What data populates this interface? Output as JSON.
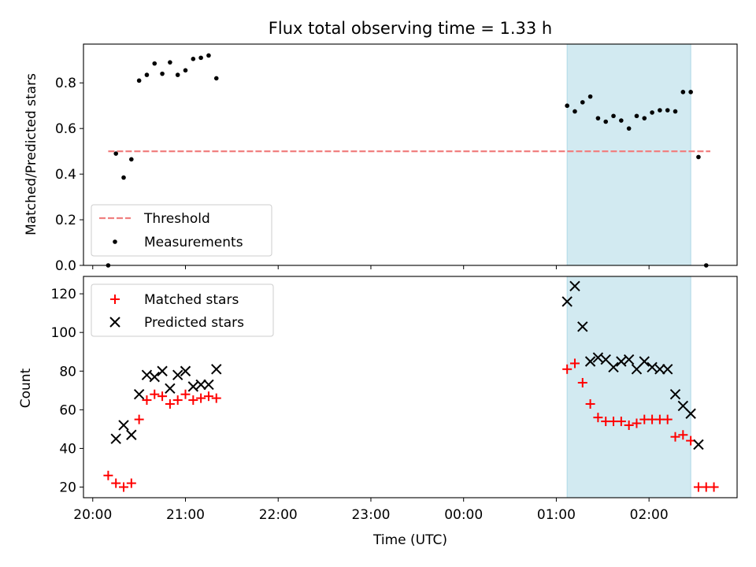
{
  "chart_data": {
    "title": "Flux total observing time = 1.33 h",
    "xlabel": "Time (UTC)",
    "x_ticks": [
      "20:00",
      "21:00",
      "22:00",
      "23:00",
      "00:00",
      "01:00",
      "02:00"
    ],
    "x_tick_values": [
      "20:00",
      "21:00",
      "22:00",
      "23:00",
      "00:00",
      "01:00",
      "02:00"
    ],
    "xlim": [
      "19:54",
      "02:57"
    ],
    "colors": {
      "threshold": "#f08080",
      "shade": "#add8e6",
      "matched": "#ff0000",
      "predicted": "#000000",
      "measurements": "#000000"
    },
    "shaded_span": [
      "01:07",
      "02:27"
    ],
    "panels": [
      {
        "type": "scatter",
        "ylabel": "Matched/Predicted stars",
        "ylim": [
          0,
          0.97
        ],
        "y_ticks": [
          "0.0",
          "0.2",
          "0.4",
          "0.6",
          "0.8"
        ],
        "y_tick_values": [
          0,
          0.2,
          0.4,
          0.6,
          0.8
        ],
        "legend_position": "lower-left",
        "threshold": {
          "name": "Threshold",
          "y": 0.5,
          "x_range": [
            "20:10",
            "02:57"
          ]
        },
        "series": [
          {
            "name": "Measurements",
            "x": [
              "20:10",
              "20:15",
              "20:20",
              "20:25",
              "20:30",
              "20:35",
              "20:40",
              "20:45",
              "20:50",
              "20:55",
              "21:00",
              "21:05",
              "21:10",
              "21:15",
              "21:20",
              "01:07",
              "01:12",
              "01:17",
              "01:22",
              "01:27",
              "01:32",
              "01:37",
              "01:42",
              "01:47",
              "01:52",
              "01:57",
              "02:02",
              "02:07",
              "02:12",
              "02:17",
              "02:22",
              "02:27",
              "02:32",
              "02:37"
            ],
            "y": [
              0.0,
              0.49,
              0.385,
              0.465,
              0.81,
              0.835,
              0.885,
              0.84,
              0.89,
              0.835,
              0.855,
              0.905,
              0.91,
              0.92,
              0.82,
              0.7,
              0.675,
              0.715,
              0.74,
              0.645,
              0.63,
              0.655,
              0.635,
              0.6,
              0.655,
              0.645,
              0.67,
              0.68,
              0.68,
              0.675,
              0.76,
              0.76,
              0.475,
              0.0
            ]
          }
        ]
      },
      {
        "type": "scatter",
        "ylabel": "Count",
        "ylim": [
          14.5,
          129
        ],
        "y_ticks": [
          "20",
          "40",
          "60",
          "80",
          "100",
          "120"
        ],
        "y_tick_values": [
          20,
          40,
          60,
          80,
          100,
          120
        ],
        "legend_position": "upper-left",
        "series": [
          {
            "name": "Matched stars",
            "marker": "plus",
            "x": [
              "20:10",
              "20:15",
              "20:20",
              "20:25",
              "20:30",
              "20:35",
              "20:40",
              "20:45",
              "20:50",
              "20:55",
              "21:00",
              "21:05",
              "21:10",
              "21:15",
              "21:20",
              "01:07",
              "01:12",
              "01:17",
              "01:22",
              "01:27",
              "01:32",
              "01:37",
              "01:42",
              "01:47",
              "01:52",
              "01:57",
              "02:02",
              "02:07",
              "02:12",
              "02:17",
              "02:22",
              "02:27",
              "02:32",
              "02:37",
              "02:42"
            ],
            "y": [
              26,
              22,
              20,
              22,
              55,
              65,
              68,
              67,
              63,
              65,
              68,
              65,
              66,
              67,
              66,
              81,
              84,
              74,
              63,
              56,
              54,
              54,
              54,
              52,
              53,
              55,
              55,
              55,
              55,
              46,
              47,
              44,
              20,
              20,
              20
            ]
          },
          {
            "name": "Predicted stars",
            "marker": "x",
            "x": [
              "20:15",
              "20:20",
              "20:25",
              "20:30",
              "20:35",
              "20:40",
              "20:45",
              "20:50",
              "20:55",
              "21:00",
              "21:05",
              "21:10",
              "21:15",
              "21:20",
              "01:07",
              "01:12",
              "01:17",
              "01:22",
              "01:27",
              "01:32",
              "01:37",
              "01:42",
              "01:47",
              "01:52",
              "01:57",
              "02:02",
              "02:07",
              "02:12",
              "02:17",
              "02:22",
              "02:27",
              "02:32"
            ],
            "y": [
              45,
              52,
              47,
              68,
              78,
              77,
              80,
              71,
              78,
              80,
              72,
              73,
              73,
              81,
              116,
              124,
              103,
              85,
              87,
              86,
              82,
              85,
              86,
              81,
              85,
              82,
              81,
              81,
              68,
              62,
              58,
              42
            ]
          }
        ]
      }
    ]
  }
}
